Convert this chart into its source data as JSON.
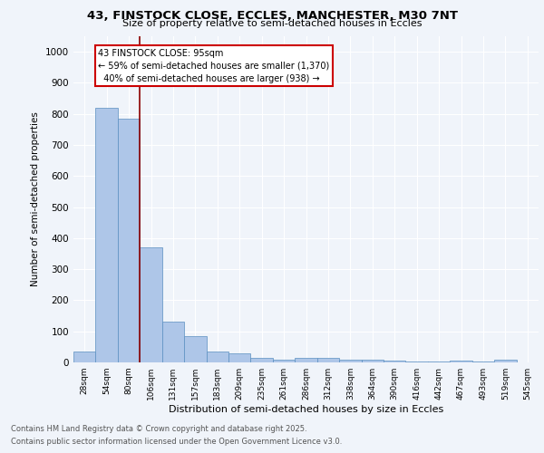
{
  "title_line1": "43, FINSTOCK CLOSE, ECCLES, MANCHESTER, M30 7NT",
  "title_line2": "Size of property relative to semi-detached houses in Eccles",
  "xlabel": "Distribution of semi-detached houses by size in Eccles",
  "ylabel": "Number of semi-detached properties",
  "categories": [
    "28sqm",
    "54sqm",
    "80sqm",
    "106sqm",
    "131sqm",
    "157sqm",
    "183sqm",
    "209sqm",
    "235sqm",
    "261sqm",
    "286sqm",
    "312sqm",
    "338sqm",
    "364sqm",
    "390sqm",
    "416sqm",
    "442sqm",
    "467sqm",
    "493sqm",
    "519sqm",
    "545sqm"
  ],
  "values": [
    35,
    820,
    785,
    370,
    130,
    85,
    35,
    30,
    15,
    10,
    15,
    15,
    10,
    8,
    5,
    2,
    2,
    5,
    2,
    10,
    0
  ],
  "bar_color": "#aec6e8",
  "bar_edge_color": "#5a8fc0",
  "vline_x": 2.5,
  "vline_color": "#8b0000",
  "property_label": "43 FINSTOCK CLOSE: 95sqm",
  "pct_smaller": "59% of semi-detached houses are smaller (1,370)",
  "pct_larger": "40% of semi-detached houses are larger (938)",
  "annotation_box_color": "#cc0000",
  "ylim": [
    0,
    1050
  ],
  "yticks": [
    0,
    100,
    200,
    300,
    400,
    500,
    600,
    700,
    800,
    900,
    1000
  ],
  "footer_line1": "Contains HM Land Registry data © Crown copyright and database right 2025.",
  "footer_line2": "Contains public sector information licensed under the Open Government Licence v3.0.",
  "bg_color": "#f0f4fa"
}
